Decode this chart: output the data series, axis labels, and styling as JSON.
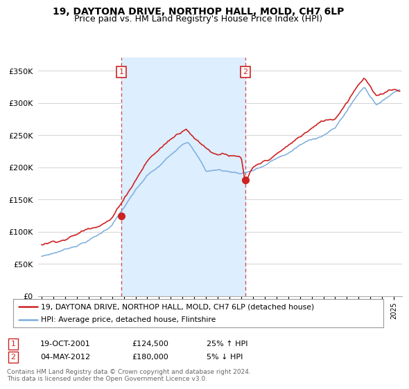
{
  "title": "19, DAYTONA DRIVE, NORTHOP HALL, MOLD, CH7 6LP",
  "subtitle": "Price paid vs. HM Land Registry's House Price Index (HPI)",
  "ylabel_ticks": [
    "£0",
    "£50K",
    "£100K",
    "£150K",
    "£200K",
    "£250K",
    "£300K",
    "£350K"
  ],
  "ytick_values": [
    0,
    50000,
    100000,
    150000,
    200000,
    250000,
    300000,
    350000
  ],
  "ylim": [
    0,
    370000
  ],
  "xlim_start": 1994.7,
  "xlim_end": 2025.7,
  "hpi_color": "#7aaddc",
  "price_color": "#cc2222",
  "shade_color": "#ddeeff",
  "marker1_x": 2001.8,
  "marker1_y": 124500,
  "marker2_x": 2012.35,
  "marker2_y": 180000,
  "marker1_label": "1",
  "marker2_label": "2",
  "legend_line1": "19, DAYTONA DRIVE, NORTHOP HALL, MOLD, CH7 6LP (detached house)",
  "legend_line2": "HPI: Average price, detached house, Flintshire",
  "table_row1": [
    "1",
    "19-OCT-2001",
    "£124,500",
    "25% ↑ HPI"
  ],
  "table_row2": [
    "2",
    "04-MAY-2012",
    "£180,000",
    "5% ↓ HPI"
  ],
  "footnote": "Contains HM Land Registry data © Crown copyright and database right 2024.\nThis data is licensed under the Open Government Licence v3.0.",
  "background_color": "#ffffff",
  "grid_color": "#cccccc",
  "vline_color": "#dd4444",
  "title_fontsize": 10,
  "subtitle_fontsize": 9,
  "tick_fontsize": 8,
  "legend_fontsize": 8
}
